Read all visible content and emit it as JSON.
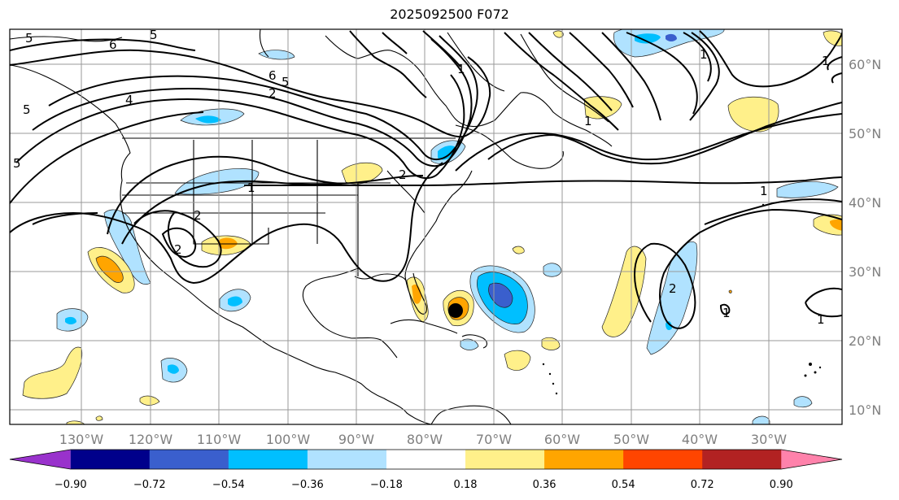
{
  "title": "2025092500 F072",
  "map": {
    "lon_ticks": [
      "130°W",
      "120°W",
      "110°W",
      "100°W",
      "90°W",
      "80°W",
      "70°W",
      "60°W",
      "50°W",
      "40°W",
      "30°W"
    ],
    "lat_ticks": [
      "60°N",
      "50°N",
      "40°N",
      "30°N",
      "20°N",
      "10°N"
    ],
    "contour_labels": [
      "5",
      "6",
      "5",
      "4",
      "5",
      "6",
      "5",
      "2",
      "1",
      "1",
      "1",
      "2",
      "1",
      "2",
      "2",
      "2",
      "1",
      "1",
      "1",
      "1",
      "5"
    ],
    "storm_marker": "hurricane-center"
  },
  "colorbar": {
    "colors": [
      "#9932cc",
      "#00008b",
      "#3a5fcd",
      "#00bfff",
      "#b0e2ff",
      "#ffffff",
      "#fff08a",
      "#ffa500",
      "#ff4500",
      "#b22222",
      "#ff82ab"
    ],
    "labels": [
      "−0.90",
      "−0.72",
      "−0.54",
      "−0.36",
      "−0.18",
      "0.18",
      "0.36",
      "0.54",
      "0.72",
      "0.90"
    ],
    "extend": "both"
  }
}
